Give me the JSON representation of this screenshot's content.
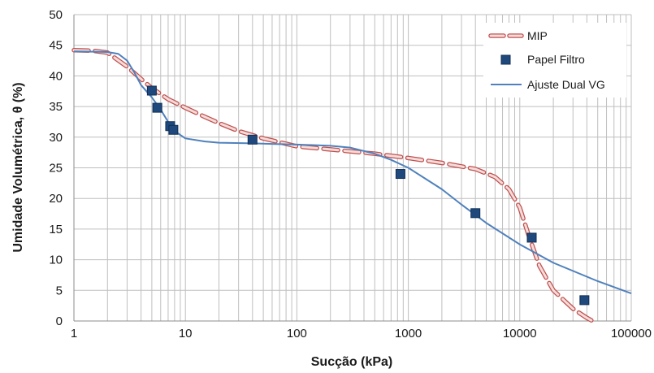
{
  "chart_data": {
    "type": "scatter",
    "xscale": "log",
    "xlim": [
      1,
      100000
    ],
    "ylim": [
      0,
      50
    ],
    "xlabel": "Sucção (kPa)",
    "ylabel": "Umidade Volumétrica, θ (%)",
    "x_tick_labels": [
      "1",
      "10",
      "100",
      "1000",
      "10000",
      "100000"
    ],
    "y_tick_labels": [
      "0",
      "5",
      "10",
      "15",
      "20",
      "25",
      "30",
      "35",
      "40",
      "45",
      "50"
    ],
    "grid": {
      "major": true,
      "minor_x": true
    },
    "legend_position": "top-right",
    "colors": {
      "mip_stroke": "#c0504d",
      "mip_fill": "#f4dcdb",
      "marker": "#1f497d",
      "fit_line": "#4f81bd",
      "grid": "#bfbfbf"
    },
    "series": [
      {
        "name": "MIP",
        "kind": "dashed-line",
        "points": [
          [
            1,
            44.2
          ],
          [
            1.5,
            44.1
          ],
          [
            2,
            43.8
          ],
          [
            3,
            41.5
          ],
          [
            4,
            39.5
          ],
          [
            5,
            38
          ],
          [
            7,
            36.2
          ],
          [
            10,
            34.8
          ],
          [
            15,
            33.3
          ],
          [
            20,
            32.3
          ],
          [
            30,
            31
          ],
          [
            50,
            29.8
          ],
          [
            100,
            28.5
          ],
          [
            200,
            28
          ],
          [
            500,
            27.3
          ],
          [
            1000,
            26.6
          ],
          [
            2000,
            25.8
          ],
          [
            4000,
            24.8
          ],
          [
            6000,
            23.5
          ],
          [
            8000,
            21.5
          ],
          [
            10000,
            18.5
          ],
          [
            12000,
            14
          ],
          [
            15000,
            9
          ],
          [
            20000,
            5
          ],
          [
            30000,
            2
          ],
          [
            40000,
            0.5
          ],
          [
            45000,
            0
          ]
        ]
      },
      {
        "name": "Papel Filtro",
        "kind": "markers",
        "points": [
          [
            5,
            37.6
          ],
          [
            5.6,
            34.8
          ],
          [
            7.3,
            31.8
          ],
          [
            7.8,
            31.2
          ],
          [
            40,
            29.6
          ],
          [
            850,
            24
          ],
          [
            4000,
            17.6
          ],
          [
            12800,
            13.6
          ],
          [
            38000,
            3.4
          ]
        ]
      },
      {
        "name": "Ajuste Dual VG",
        "kind": "line",
        "points": [
          [
            1,
            44
          ],
          [
            2,
            43.9
          ],
          [
            2.5,
            43.6
          ],
          [
            3,
            42.5
          ],
          [
            3.5,
            40.5
          ],
          [
            4,
            38.5
          ],
          [
            5,
            36.5
          ],
          [
            6,
            34.5
          ],
          [
            7,
            32.5
          ],
          [
            8,
            31
          ],
          [
            10,
            29.8
          ],
          [
            15,
            29.3
          ],
          [
            20,
            29.1
          ],
          [
            40,
            29.0
          ],
          [
            60,
            28.9
          ],
          [
            100,
            28.8
          ],
          [
            200,
            28.6
          ],
          [
            300,
            28.3
          ],
          [
            500,
            27.3
          ],
          [
            700,
            26.3
          ],
          [
            1000,
            25
          ],
          [
            2000,
            21.5
          ],
          [
            3000,
            19
          ],
          [
            5000,
            16
          ],
          [
            10000,
            12.5
          ],
          [
            20000,
            9.5
          ],
          [
            50000,
            6.5
          ],
          [
            100000,
            4.5
          ]
        ]
      }
    ]
  }
}
